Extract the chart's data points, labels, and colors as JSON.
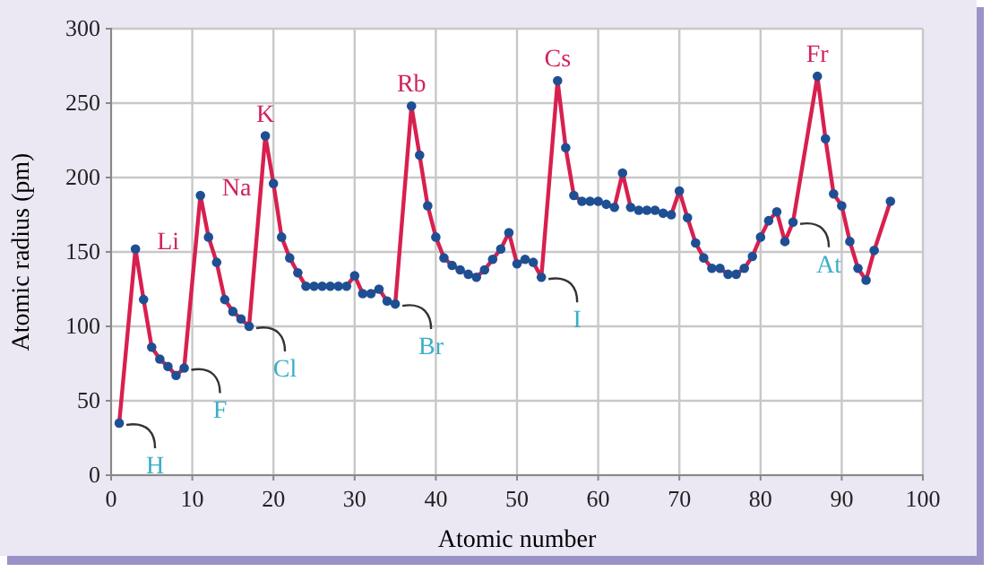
{
  "chart_data": {
    "type": "line",
    "xlabel": "Atomic number",
    "ylabel": "Atomic radius (pm)",
    "xlim": [
      0,
      100
    ],
    "ylim": [
      0,
      300
    ],
    "xticks": [
      0,
      10,
      20,
      30,
      40,
      50,
      60,
      70,
      80,
      90,
      100
    ],
    "yticks": [
      0,
      50,
      100,
      150,
      200,
      250,
      300
    ],
    "grid": true,
    "marker": "circle",
    "line_style": "solid",
    "series": [
      {
        "color": "#d8204f",
        "x": [
          1,
          3,
          4,
          5,
          6,
          7,
          8,
          9,
          11,
          12,
          13,
          14,
          15,
          16,
          17,
          19,
          20,
          21,
          22,
          23,
          24,
          25,
          26,
          27,
          28,
          29,
          30,
          31,
          32,
          33,
          34,
          35,
          37,
          38,
          39,
          40,
          41,
          42,
          43,
          44,
          45,
          46,
          47,
          48,
          49,
          50,
          51,
          52,
          53,
          55,
          56,
          57,
          58,
          59,
          60,
          61,
          62,
          63,
          64,
          65,
          66,
          67,
          68,
          69,
          70,
          71,
          72,
          73,
          74,
          75,
          76,
          77,
          78,
          79,
          80,
          81,
          82,
          83,
          84,
          87,
          88,
          89,
          90,
          91,
          92,
          93,
          94,
          96
        ],
        "values": [
          35,
          152,
          118,
          86,
          78,
          73,
          67,
          72,
          188,
          160,
          143,
          118,
          110,
          105,
          100,
          228,
          196,
          160,
          146,
          136,
          127,
          127,
          127,
          127,
          127,
          127,
          134,
          122,
          122,
          125,
          117,
          115,
          248,
          215,
          181,
          160,
          146,
          141,
          138,
          135,
          133,
          138,
          145,
          152,
          163,
          142,
          145,
          143,
          133,
          265,
          220,
          188,
          184,
          184,
          184,
          182,
          180,
          203,
          180,
          178,
          178,
          178,
          176,
          175,
          191,
          173,
          156,
          146,
          139,
          139,
          135,
          135,
          139,
          147,
          160,
          171,
          177,
          157,
          170,
          268,
          226,
          189,
          181,
          157,
          139,
          131,
          151,
          184
        ]
      }
    ],
    "annotations": [
      {
        "text": "Li",
        "x": 3,
        "y": 152
      },
      {
        "text": "Na",
        "x": 11,
        "y": 188
      },
      {
        "text": "K",
        "x": 19,
        "y": 228
      },
      {
        "text": "Rb",
        "x": 37,
        "y": 248
      },
      {
        "text": "Cs",
        "x": 55,
        "y": 265
      },
      {
        "text": "Fr",
        "x": 87,
        "y": 268
      },
      {
        "text": "H",
        "x": 1,
        "y": 35
      },
      {
        "text": "F",
        "x": 9,
        "y": 72
      },
      {
        "text": "Cl",
        "x": 17,
        "y": 100
      },
      {
        "text": "Br",
        "x": 35,
        "y": 115
      },
      {
        "text": "I",
        "x": 53,
        "y": 133
      },
      {
        "text": "At",
        "x": 84,
        "y": 170
      }
    ]
  }
}
